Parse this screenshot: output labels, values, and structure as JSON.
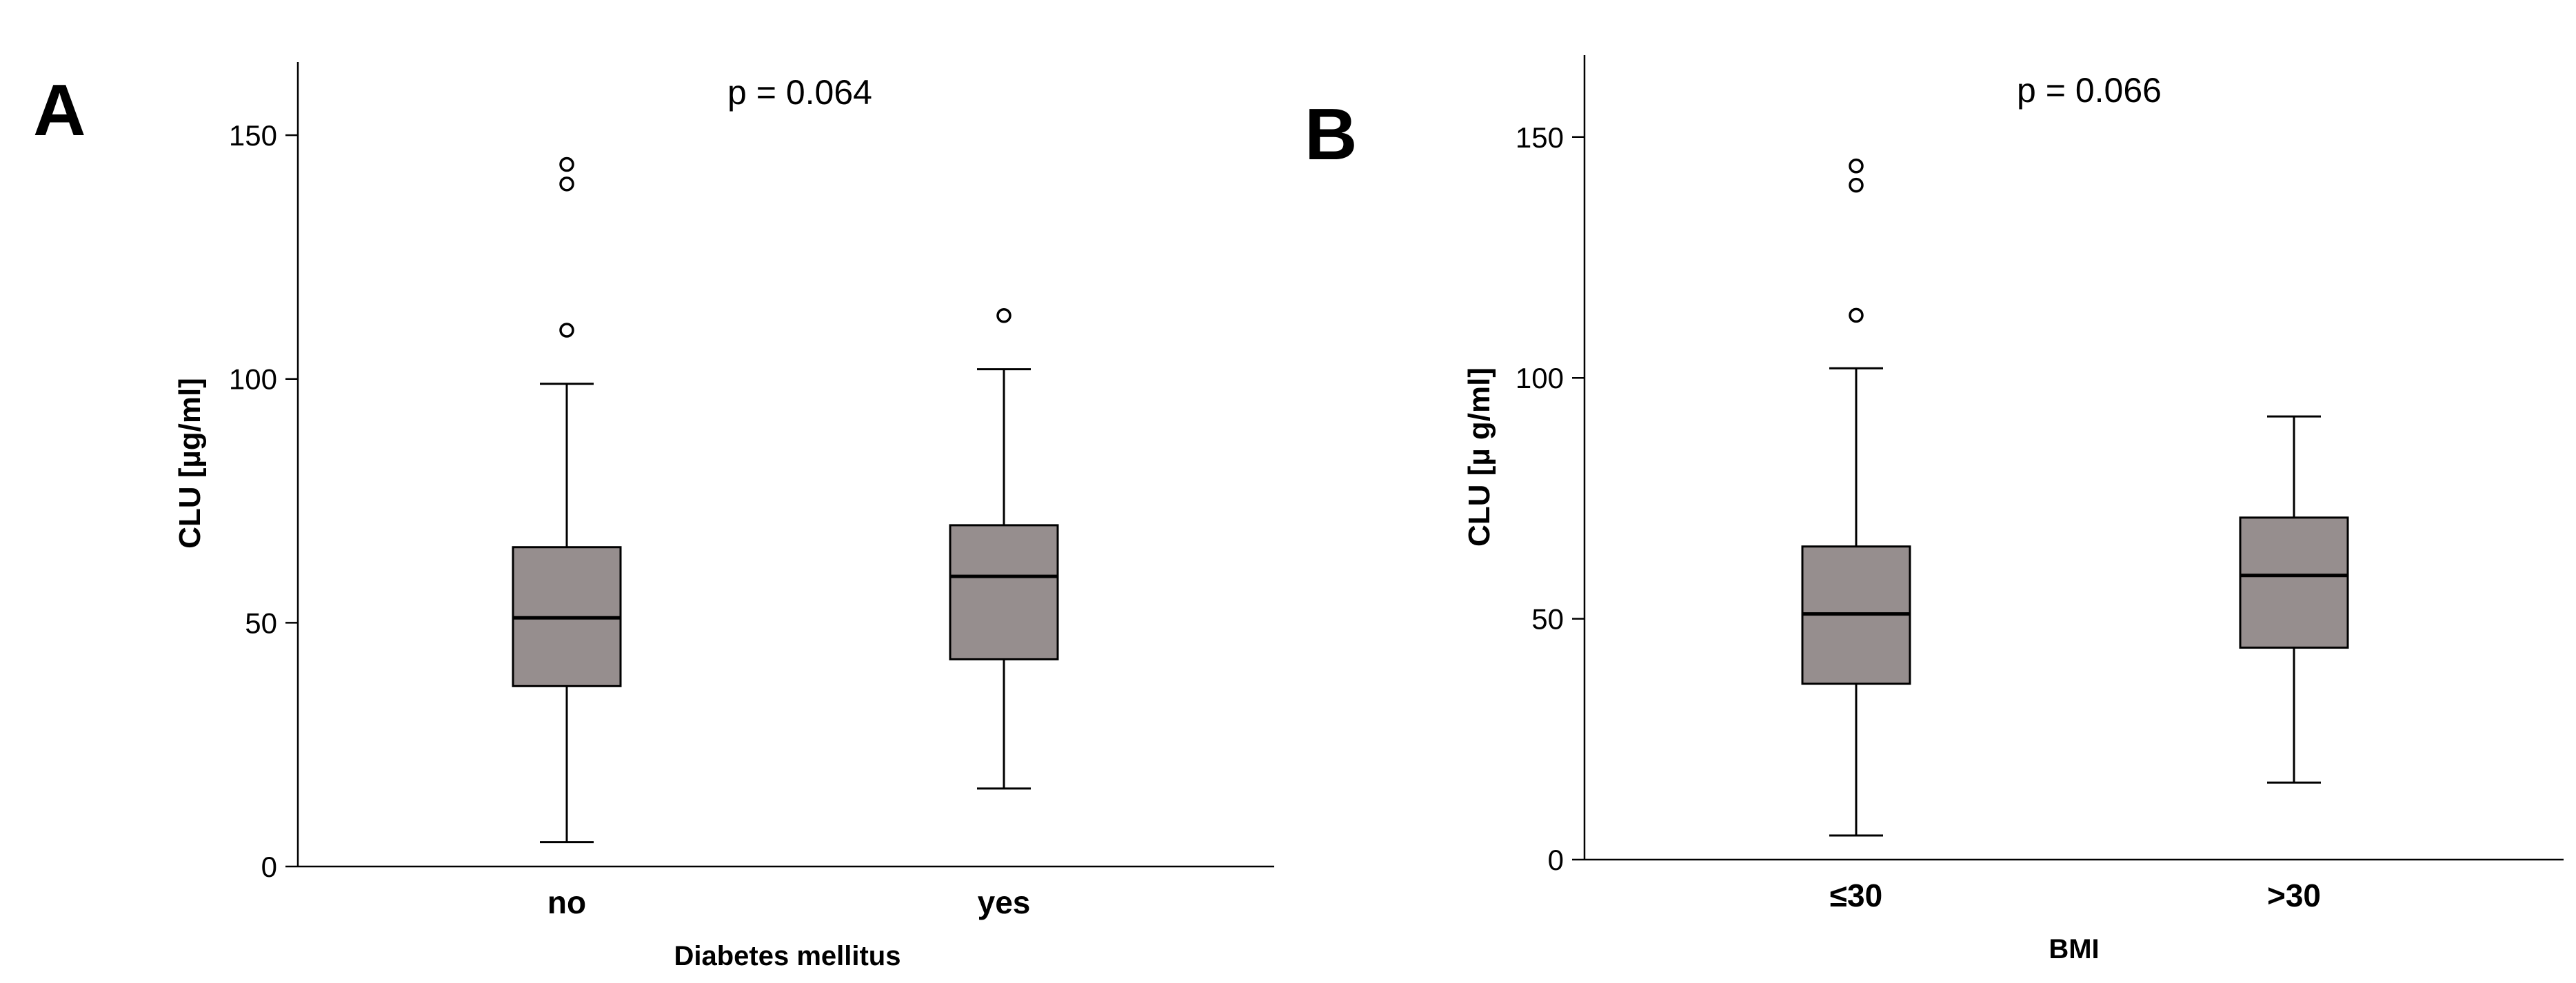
{
  "colors": {
    "box_fill": "#968e8e",
    "stroke": "#000000",
    "background": "#ffffff"
  },
  "chart_data": [
    {
      "type": "box",
      "panel": "A",
      "annotation": "p = 0.064",
      "xlabel": "Diabetes mellitus",
      "ylabel": "CLU [µg/ml]",
      "ylim": [
        0,
        165
      ],
      "yticks": [
        0,
        50,
        100,
        150
      ],
      "categories": [
        "no",
        "yes"
      ],
      "boxes": [
        {
          "category": "no",
          "whisker_low": 5,
          "q1": 37,
          "median": 51,
          "q3": 65.5,
          "whisker_high": 99,
          "outliers": [
            110,
            140,
            144
          ]
        },
        {
          "category": "yes",
          "whisker_low": 16,
          "q1": 42.5,
          "median": 59.5,
          "q3": 70,
          "whisker_high": 102,
          "outliers": [
            113
          ]
        }
      ],
      "grid": false,
      "legend": "none"
    },
    {
      "type": "box",
      "panel": "B",
      "annotation": "p = 0.066",
      "xlabel": "BMI",
      "ylabel": "CLU [µ g/ml]",
      "ylim": [
        0,
        167
      ],
      "yticks": [
        0,
        50,
        100,
        150
      ],
      "categories": [
        "≤30",
        ">30"
      ],
      "boxes": [
        {
          "category": "≤30",
          "whisker_low": 5,
          "q1": 36.5,
          "median": 51,
          "q3": 65,
          "whisker_high": 102,
          "outliers": [
            113,
            140,
            144
          ]
        },
        {
          "category": ">30",
          "whisker_low": 16,
          "q1": 44,
          "median": 59,
          "q3": 71,
          "whisker_high": 92,
          "outliers": []
        }
      ],
      "grid": false,
      "legend": "none"
    }
  ]
}
